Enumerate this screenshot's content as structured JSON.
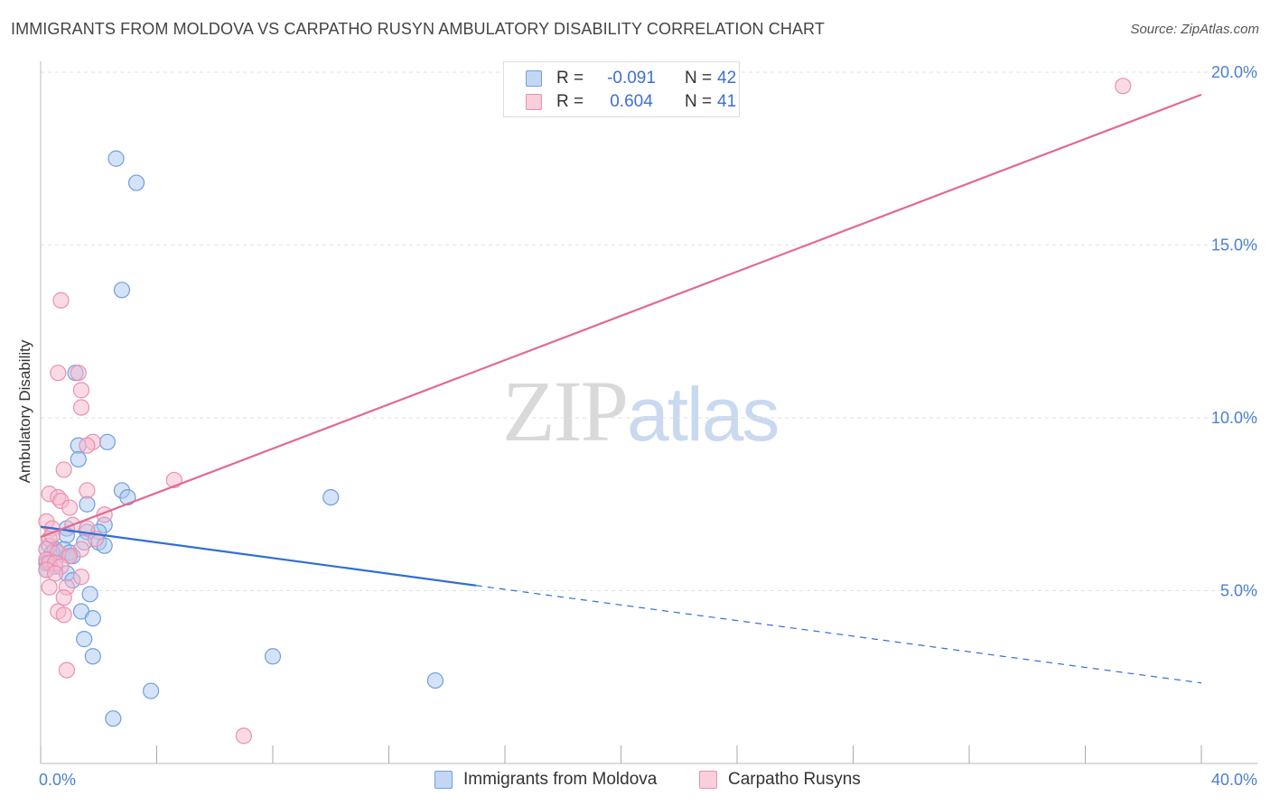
{
  "title": "IMMIGRANTS FROM MOLDOVA VS CARPATHO RUSYN AMBULATORY DISABILITY CORRELATION CHART",
  "source": "Source: ZipAtlas.com",
  "watermark": {
    "zip": "ZIP",
    "atlas": "atlas"
  },
  "legend_top": {
    "rows": [
      {
        "r_label": "R =",
        "r_value": "-0.091",
        "n_label": "N =",
        "n_value": "42"
      },
      {
        "r_label": "R =",
        "r_value": "0.604",
        "n_label": "N =",
        "n_value": "41"
      }
    ]
  },
  "legend_bottom": {
    "series1": "Immigrants from Moldova",
    "series2": "Carpatho Rusyns"
  },
  "colors": {
    "blue_fill": "#aac8f0",
    "blue_stroke": "#6f9ee0",
    "blue_line": "#2f6fd3",
    "pink_fill": "#f5b8cb",
    "pink_stroke": "#ec8fae",
    "pink_line": "#e06a94",
    "grid": "#e2e2e2",
    "tick_text": "#4a7fd4"
  },
  "chart_data": {
    "type": "scatter",
    "title": "IMMIGRANTS FROM MOLDOVA VS CARPATHO RUSYN AMBULATORY DISABILITY CORRELATION CHART",
    "xlabel": "",
    "ylabel": "Ambulatory Disability",
    "xlim": [
      0,
      40
    ],
    "ylim": [
      0,
      20
    ],
    "x_tick_labels": [
      {
        "value": 0,
        "label": "0.0%"
      },
      {
        "value": 40,
        "label": "40.0%"
      }
    ],
    "y_tick_labels": [
      {
        "value": 5,
        "label": "5.0%"
      },
      {
        "value": 10,
        "label": "10.0%"
      },
      {
        "value": 15,
        "label": "15.0%"
      },
      {
        "value": 20,
        "label": "20.0%"
      }
    ],
    "grid": true,
    "series": [
      {
        "name": "Immigrants from Moldova",
        "color_key": "blue",
        "r": -0.091,
        "n": 42,
        "trend": {
          "x0": 0,
          "y0": 6.85,
          "x1": 15,
          "y1": 5.15,
          "dash_x1": 40,
          "dash_y1": 2.33
        },
        "points": [
          [
            2.6,
            17.5
          ],
          [
            3.3,
            16.8
          ],
          [
            2.8,
            13.7
          ],
          [
            1.2,
            11.3
          ],
          [
            2.3,
            9.3
          ],
          [
            1.3,
            9.2
          ],
          [
            1.3,
            8.8
          ],
          [
            2.8,
            7.9
          ],
          [
            3.0,
            7.7
          ],
          [
            1.6,
            7.5
          ],
          [
            10.0,
            7.7
          ],
          [
            0.9,
            6.8
          ],
          [
            2.2,
            6.9
          ],
          [
            1.6,
            6.7
          ],
          [
            2.0,
            6.7
          ],
          [
            0.9,
            6.6
          ],
          [
            0.3,
            6.3
          ],
          [
            0.5,
            6.2
          ],
          [
            2.0,
            6.4
          ],
          [
            2.2,
            6.3
          ],
          [
            1.5,
            6.4
          ],
          [
            0.8,
            6.2
          ],
          [
            0.4,
            6.1
          ],
          [
            1.0,
            6.0
          ],
          [
            1.0,
            6.1
          ],
          [
            0.3,
            5.9
          ],
          [
            0.3,
            5.8
          ],
          [
            0.2,
            5.8
          ],
          [
            0.5,
            5.7
          ],
          [
            0.2,
            5.6
          ],
          [
            0.9,
            5.5
          ],
          [
            1.1,
            5.3
          ],
          [
            1.7,
            4.9
          ],
          [
            1.4,
            4.4
          ],
          [
            1.8,
            4.2
          ],
          [
            1.5,
            3.6
          ],
          [
            1.8,
            3.1
          ],
          [
            8.0,
            3.1
          ],
          [
            13.6,
            2.4
          ],
          [
            3.8,
            2.1
          ],
          [
            2.5,
            1.3
          ],
          [
            1.1,
            6.0
          ]
        ]
      },
      {
        "name": "Carpatho Rusyns",
        "color_key": "pink",
        "r": 0.604,
        "n": 41,
        "trend": {
          "x0": 0,
          "y0": 6.55,
          "x1": 40,
          "y1": 19.35
        },
        "points": [
          [
            37.3,
            19.6
          ],
          [
            0.7,
            13.4
          ],
          [
            0.6,
            11.3
          ],
          [
            1.3,
            11.3
          ],
          [
            1.4,
            10.8
          ],
          [
            1.4,
            10.3
          ],
          [
            1.8,
            9.3
          ],
          [
            1.6,
            9.2
          ],
          [
            0.8,
            8.5
          ],
          [
            4.6,
            8.2
          ],
          [
            0.3,
            7.8
          ],
          [
            0.6,
            7.7
          ],
          [
            1.6,
            7.9
          ],
          [
            0.7,
            7.6
          ],
          [
            1.0,
            7.4
          ],
          [
            2.2,
            7.2
          ],
          [
            0.2,
            7.0
          ],
          [
            1.1,
            6.9
          ],
          [
            0.4,
            6.8
          ],
          [
            1.6,
            6.8
          ],
          [
            0.3,
            6.5
          ],
          [
            0.2,
            6.2
          ],
          [
            1.4,
            6.2
          ],
          [
            0.6,
            6.1
          ],
          [
            1.0,
            6.0
          ],
          [
            0.2,
            5.9
          ],
          [
            0.3,
            5.8
          ],
          [
            0.5,
            5.8
          ],
          [
            0.7,
            5.7
          ],
          [
            0.2,
            5.6
          ],
          [
            0.5,
            5.5
          ],
          [
            1.4,
            5.4
          ],
          [
            0.3,
            5.1
          ],
          [
            0.9,
            5.1
          ],
          [
            0.8,
            4.8
          ],
          [
            0.6,
            4.4
          ],
          [
            0.8,
            4.3
          ],
          [
            0.9,
            2.7
          ],
          [
            7.0,
            0.8
          ],
          [
            0.4,
            6.6
          ],
          [
            1.9,
            6.5
          ]
        ]
      }
    ]
  }
}
